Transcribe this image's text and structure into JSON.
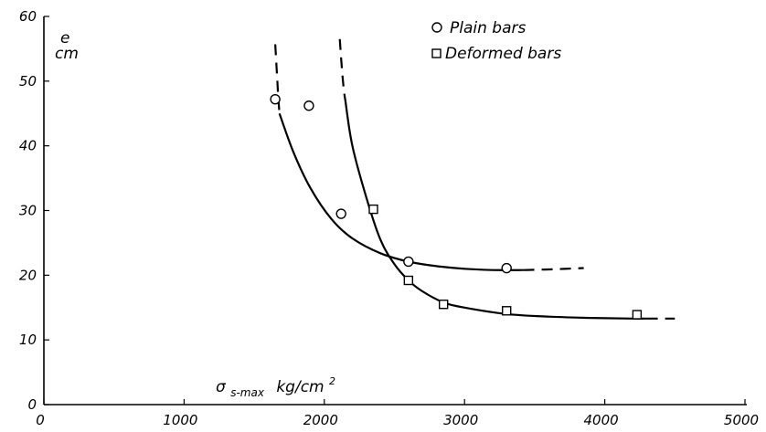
{
  "chart_data": {
    "type": "scatter",
    "title": "",
    "xlabel": {
      "symbol": "σ",
      "subscript": "s-max",
      "units": "kg/cm",
      "superscript": "2"
    },
    "ylabel": {
      "line1": "e",
      "line2": "cm"
    },
    "xlim": [
      0,
      5000
    ],
    "ylim": [
      0,
      60
    ],
    "xticks": [
      0,
      1000,
      2000,
      3000,
      4000,
      5000
    ],
    "yticks": [
      0,
      10,
      20,
      30,
      40,
      50,
      60
    ],
    "xtick_labels": [
      "0",
      "1000",
      "2000",
      "3000",
      "4000",
      "5000"
    ],
    "ytick_labels": [
      "0",
      "10",
      "20",
      "30",
      "40",
      "50",
      "60"
    ],
    "grid": false,
    "legend_position": "top-right",
    "series": [
      {
        "name": "Plain bars",
        "marker": "circle",
        "points": [
          {
            "x": 1650,
            "y": 47.2
          },
          {
            "x": 1890,
            "y": 46.2
          },
          {
            "x": 2120,
            "y": 29.5
          },
          {
            "x": 2600,
            "y": 22.1
          },
          {
            "x": 3300,
            "y": 21.1
          }
        ],
        "fit_solid": [
          [
            1680,
            45
          ],
          [
            1780,
            39
          ],
          [
            1900,
            33.5
          ],
          [
            2050,
            28.7
          ],
          [
            2200,
            25.7
          ],
          [
            2400,
            23.4
          ],
          [
            2600,
            22.1
          ],
          [
            2800,
            21.4
          ],
          [
            3000,
            21.0
          ],
          [
            3200,
            20.8
          ],
          [
            3420,
            20.8
          ]
        ],
        "fit_dashed_start": [
          [
            1650,
            55.7
          ],
          [
            1660,
            52
          ],
          [
            1670,
            48
          ],
          [
            1680,
            45
          ]
        ],
        "fit_dashed_end": [
          [
            3420,
            20.8
          ],
          [
            3600,
            20.9
          ],
          [
            3850,
            21.1
          ]
        ]
      },
      {
        "name": "Deformed bars",
        "marker": "square",
        "points": [
          {
            "x": 2350,
            "y": 30.2
          },
          {
            "x": 2600,
            "y": 19.2
          },
          {
            "x": 2850,
            "y": 15.5
          },
          {
            "x": 3300,
            "y": 14.5
          },
          {
            "x": 4230,
            "y": 13.9
          }
        ],
        "fit_solid": [
          [
            2150,
            47
          ],
          [
            2200,
            40
          ],
          [
            2300,
            32
          ],
          [
            2400,
            25.5
          ],
          [
            2500,
            21.7
          ],
          [
            2600,
            19.2
          ],
          [
            2700,
            17.5
          ],
          [
            2850,
            15.8
          ],
          [
            3000,
            15.0
          ],
          [
            3300,
            14.0
          ],
          [
            3600,
            13.6
          ],
          [
            3900,
            13.4
          ],
          [
            4200,
            13.3
          ],
          [
            4300,
            13.3
          ]
        ],
        "fit_dashed_start": [
          [
            2110,
            56.5
          ],
          [
            2125,
            52
          ],
          [
            2140,
            48.5
          ],
          [
            2150,
            47
          ]
        ],
        "fit_dashed_end": [
          [
            4300,
            13.3
          ],
          [
            4500,
            13.3
          ]
        ]
      }
    ]
  }
}
